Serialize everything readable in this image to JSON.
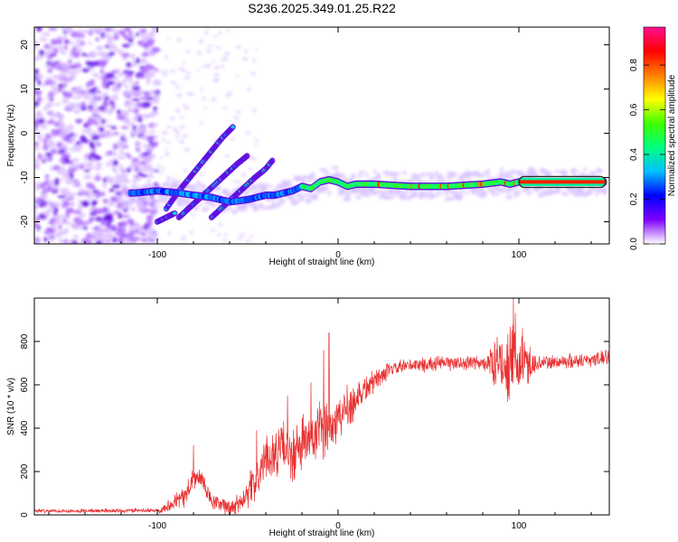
{
  "title": "S236.2025.349.01.25.R22",
  "chart_data": [
    {
      "type": "heatmap",
      "name": "spectrogram",
      "xlabel": "Height of straight line (km)",
      "ylabel": "Frequency (Hz)",
      "xlim": [
        -168,
        150
      ],
      "ylim": [
        -25,
        24
      ],
      "xticks": [
        -100,
        0,
        100
      ],
      "yticks": [
        -20,
        -10,
        0,
        10,
        20
      ],
      "colorbar": {
        "label": "Normalized spectral amplitude",
        "range": [
          0,
          0.97
        ],
        "ticks": [
          "0.0",
          "0.2",
          "0.4",
          "0.6",
          "0.8"
        ],
        "tick_values": [
          0,
          0.2,
          0.4,
          0.6,
          0.8
        ],
        "colors": [
          "#ffffff",
          "#8000ff",
          "#0000ff",
          "#00c0ff",
          "#00ff80",
          "#40ff00",
          "#ffff00",
          "#ff8000",
          "#ff0000",
          "#ff1090"
        ]
      },
      "main_ridge": [
        [
          -112,
          -13.5
        ],
        [
          -100,
          -13
        ],
        [
          -88,
          -13.5
        ],
        [
          -80,
          -14
        ],
        [
          -70,
          -14.5
        ],
        [
          -60,
          -15.5
        ],
        [
          -50,
          -15
        ],
        [
          -40,
          -14
        ],
        [
          -35,
          -14
        ],
        [
          -30,
          -13.5
        ],
        [
          -25,
          -13
        ],
        [
          -20,
          -12
        ],
        [
          -15,
          -12.5
        ],
        [
          -10,
          -11
        ],
        [
          -5,
          -10.5
        ],
        [
          0,
          -11
        ],
        [
          5,
          -12
        ],
        [
          10,
          -11.5
        ],
        [
          20,
          -11.5
        ],
        [
          40,
          -12
        ],
        [
          60,
          -12
        ],
        [
          80,
          -11.5
        ],
        [
          90,
          -11
        ],
        [
          95,
          -11.5
        ],
        [
          100,
          -11
        ],
        [
          120,
          -11
        ],
        [
          148,
          -11
        ]
      ],
      "branches": [
        [
          [
            -95,
            -17
          ],
          [
            -88,
            -13
          ],
          [
            -80,
            -9
          ],
          [
            -72,
            -5
          ],
          [
            -64,
            -1
          ],
          [
            -58,
            1.5
          ]
        ],
        [
          [
            -88,
            -19
          ],
          [
            -80,
            -16
          ],
          [
            -72,
            -13
          ],
          [
            -64,
            -10
          ],
          [
            -56,
            -7
          ],
          [
            -50,
            -5
          ]
        ],
        [
          [
            -70,
            -19
          ],
          [
            -62,
            -16
          ],
          [
            -54,
            -13
          ],
          [
            -46,
            -10
          ],
          [
            -40,
            -8
          ],
          [
            -36,
            -6
          ]
        ],
        [
          [
            -100,
            -20
          ],
          [
            -95,
            -19
          ],
          [
            -90,
            -18
          ]
        ]
      ]
    },
    {
      "type": "line",
      "name": "snr",
      "xlabel": "Height of straight line (km)",
      "ylabel": "SNR (10 * v/v)",
      "xlim": [
        -168,
        150
      ],
      "ylim": [
        0,
        1000
      ],
      "xticks": [
        -100,
        0,
        100
      ],
      "yticks": [
        0,
        200,
        400,
        600,
        800
      ],
      "color": "#e83030",
      "trend": [
        [
          -168,
          18
        ],
        [
          -100,
          20
        ],
        [
          -95,
          35
        ],
        [
          -90,
          70
        ],
        [
          -85,
          80
        ],
        [
          -80,
          170
        ],
        [
          -75,
          160
        ],
        [
          -70,
          60
        ],
        [
          -60,
          30
        ],
        [
          -55,
          50
        ],
        [
          -50,
          110
        ],
        [
          -45,
          160
        ],
        [
          -40,
          260
        ],
        [
          -30,
          310
        ],
        [
          -25,
          260
        ],
        [
          -20,
          330
        ],
        [
          -15,
          340
        ],
        [
          -10,
          380
        ],
        [
          -5,
          400
        ],
        [
          0,
          450
        ],
        [
          5,
          490
        ],
        [
          10,
          540
        ],
        [
          15,
          580
        ],
        [
          20,
          620
        ],
        [
          25,
          650
        ],
        [
          30,
          670
        ],
        [
          40,
          690
        ],
        [
          60,
          700
        ],
        [
          80,
          700
        ],
        [
          90,
          700
        ],
        [
          100,
          690
        ],
        [
          110,
          700
        ],
        [
          130,
          710
        ],
        [
          150,
          725
        ]
      ],
      "noise": [
        [
          -168,
          10
        ],
        [
          -100,
          12
        ],
        [
          -95,
          30
        ],
        [
          -80,
          70
        ],
        [
          -70,
          40
        ],
        [
          -55,
          60
        ],
        [
          -45,
          110
        ],
        [
          -30,
          140
        ],
        [
          -20,
          160
        ],
        [
          -10,
          160
        ],
        [
          0,
          140
        ],
        [
          10,
          110
        ],
        [
          20,
          60
        ],
        [
          30,
          40
        ],
        [
          80,
          40
        ],
        [
          88,
          130
        ],
        [
          95,
          200
        ],
        [
          100,
          190
        ],
        [
          105,
          120
        ],
        [
          110,
          40
        ],
        [
          150,
          40
        ]
      ],
      "peaks": [
        [
          -80,
          320
        ],
        [
          -45,
          390
        ],
        [
          -28,
          550
        ],
        [
          -15,
          610
        ],
        [
          -8,
          760
        ],
        [
          -5,
          840
        ],
        [
          5,
          600
        ],
        [
          88,
          820
        ],
        [
          97,
          1000
        ],
        [
          98,
          930
        ],
        [
          102,
          860
        ],
        [
          148,
          760
        ]
      ]
    }
  ]
}
